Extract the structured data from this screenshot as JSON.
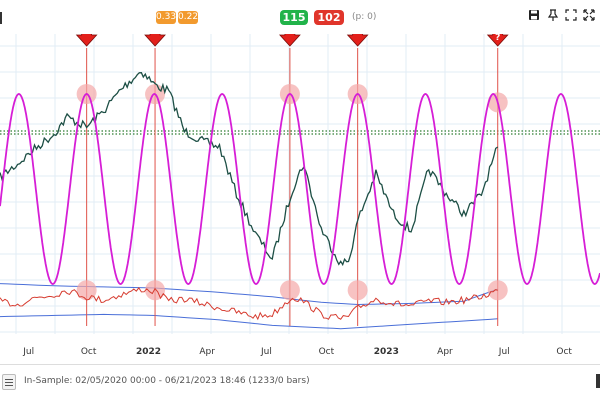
{
  "toolbar": {
    "badge_a": "0.33",
    "badge_b": "0.22",
    "count_up": "115",
    "count_down": "102",
    "p_info": "(p: 0)",
    "icons": [
      "save-icon",
      "pin-icon",
      "fullscreen-icon",
      "expand-icon"
    ],
    "colors": {
      "badge_orange": "#f29a2e",
      "badge_green": "#21b34a",
      "badge_red": "#e0352b"
    }
  },
  "footer": {
    "in_sample": "In-Sample: 02/05/2020 00:00 - 06/21/2023 18:46 (1233/0 bars)"
  },
  "chart_data": {
    "type": "line",
    "title": "",
    "x_ticks": [
      "Jul",
      "Oct",
      "2022",
      "Apr",
      "Jul",
      "Oct",
      "2023",
      "Apr",
      "Jul",
      "Oct"
    ],
    "bold_ticks": [
      "2022",
      "2023"
    ],
    "x_range": [
      "2021-05-18",
      "2023-11-25"
    ],
    "grid": true,
    "series": [
      {
        "role": "price",
        "color": "#1d4f45",
        "x": [
          "2021-05-18",
          "2021-06-14",
          "2021-07-10",
          "2021-08-09",
          "2021-08-29",
          "2021-09-28",
          "2021-10-24",
          "2021-11-20",
          "2021-12-21",
          "2022-01-11",
          "2022-02-01",
          "2022-02-25",
          "2022-03-24",
          "2022-04-20",
          "2022-05-16",
          "2022-06-14",
          "2022-07-10",
          "2022-08-10",
          "2022-08-27",
          "2022-09-23",
          "2022-10-23",
          "2022-11-04",
          "2022-11-19",
          "2022-12-16",
          "2023-01-12",
          "2023-02-08",
          "2023-03-07",
          "2023-04-03",
          "2023-04-30",
          "2023-05-27",
          "2023-06-21"
        ],
        "y": [
          12,
          25,
          40,
          55,
          72,
          62,
          78,
          100,
          118,
          104,
          98,
          58,
          48,
          42,
          -5,
          -45,
          -70,
          0,
          25,
          -40,
          -75,
          -72,
          -30,
          15,
          -25,
          -42,
          20,
          -5,
          -25,
          -5,
          42
        ]
      },
      {
        "role": "cycle",
        "color": "#d61ed6",
        "period_days": 104,
        "amplitude": 95,
        "peak_dates": [
          "2021-09-28",
          "2022-01-11",
          "2022-04-25",
          "2022-08-06",
          "2022-11-18",
          "2023-03-03",
          "2023-06-15",
          "2023-09-26"
        ],
        "x_end": "2023-11-25"
      },
      {
        "role": "oscillator",
        "color": "#d63b2f",
        "x": [
          "2021-05-18",
          "2021-06-14",
          "2021-07-10",
          "2021-08-09",
          "2021-08-29",
          "2021-09-28",
          "2021-10-24",
          "2021-11-20",
          "2021-12-21",
          "2022-01-11",
          "2022-02-01",
          "2022-02-25",
          "2022-03-24",
          "2022-04-20",
          "2022-05-16",
          "2022-06-14",
          "2022-07-10",
          "2022-08-10",
          "2022-08-27",
          "2022-09-23",
          "2022-10-23",
          "2022-11-04",
          "2022-11-19",
          "2022-12-16",
          "2023-01-12",
          "2023-02-08",
          "2023-03-07",
          "2023-04-03",
          "2023-04-30",
          "2023-05-27",
          "2023-06-21"
        ],
        "y": [
          0.4,
          0.25,
          0.55,
          0.7,
          0.9,
          0.6,
          0.45,
          0.7,
          0.95,
          0.85,
          0.4,
          0.5,
          0.3,
          0.1,
          -0.1,
          -0.3,
          -0.2,
          0.6,
          0.4,
          -0.2,
          -0.4,
          -0.3,
          0.1,
          0.5,
          0.3,
          0.2,
          0.4,
          0.35,
          0.45,
          0.6,
          0.9
        ]
      },
      {
        "role": "band",
        "color": "#4a6fd8",
        "x": [
          "2021-05-18",
          "2021-08-09",
          "2021-10-24",
          "2022-01-11",
          "2022-04-20",
          "2022-07-10",
          "2022-09-23",
          "2022-11-19",
          "2023-02-08",
          "2023-04-30",
          "2023-06-21"
        ],
        "y": [
          1.2,
          1.1,
          1.05,
          1.0,
          0.8,
          0.6,
          0.35,
          0.25,
          0.3,
          0.4,
          0.95
        ]
      },
      {
        "role": "band",
        "color": "#4a6fd8",
        "x": [
          "2021-05-18",
          "2021-10-24",
          "2022-01-11",
          "2022-04-20",
          "2022-07-10",
          "2022-10-23",
          "2023-02-08",
          "2023-05-27",
          "2023-06-21"
        ],
        "y": [
          -0.3,
          -0.2,
          -0.25,
          -0.45,
          -0.7,
          -0.85,
          -0.65,
          -0.45,
          -0.4
        ]
      }
    ],
    "reference_lines": [
      {
        "style": "dotted",
        "color": "#2e7d32",
        "y": 58
      },
      {
        "style": "dotted",
        "color": "#2e7d32",
        "y": 55
      }
    ],
    "signals": [
      {
        "date": "2021-09-28",
        "marker": "down-arrow",
        "label": ""
      },
      {
        "date": "2022-01-11",
        "marker": "down-arrow",
        "label": ""
      },
      {
        "date": "2022-08-06",
        "marker": "down-arrow",
        "label": ""
      },
      {
        "date": "2022-11-18",
        "marker": "down-arrow",
        "label": ""
      },
      {
        "date": "2023-06-21",
        "marker": "down-arrow",
        "label": "?"
      }
    ],
    "colors": {
      "signal_arrow": "#e3201b",
      "signal_line": "#e0534a",
      "signal_halo": "#f4a8a8"
    }
  }
}
